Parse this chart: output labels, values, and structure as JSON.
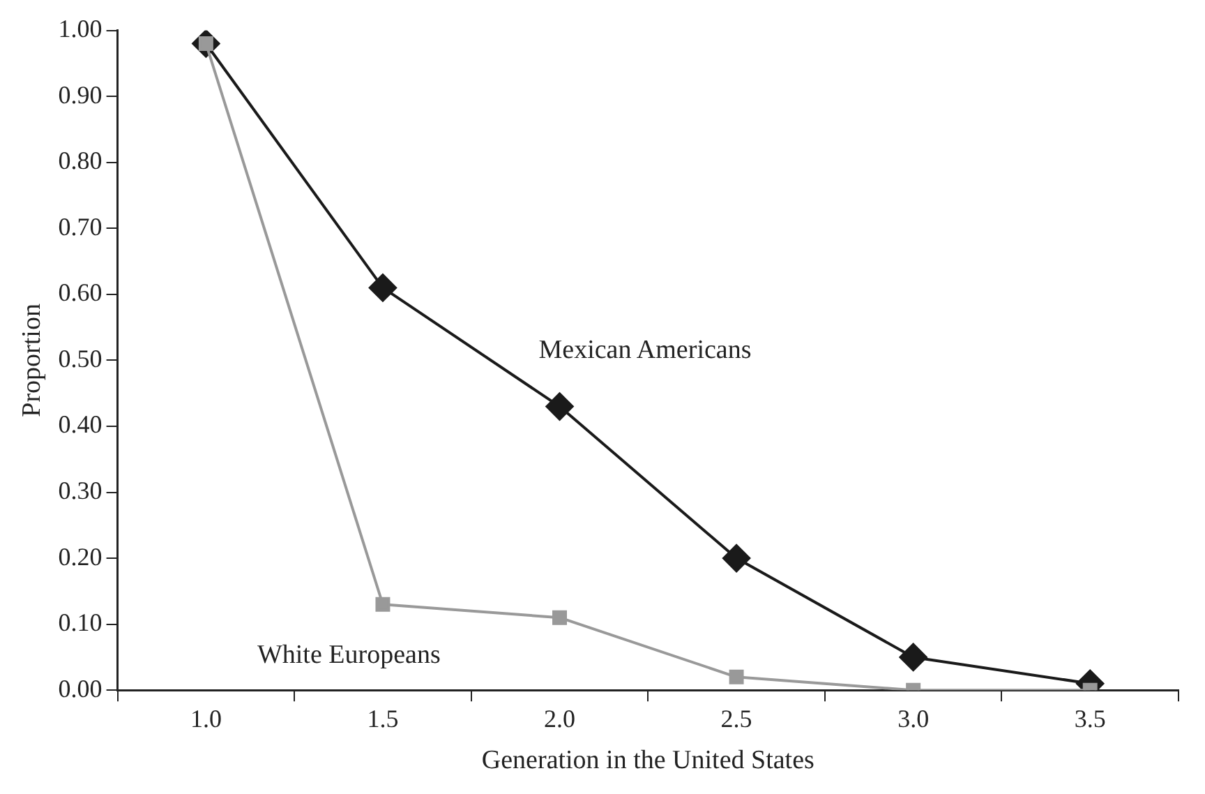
{
  "chart_data": {
    "type": "line",
    "xlabel": "Generation in the United States",
    "ylabel": "Proportion",
    "categories": [
      "1.0",
      "1.5",
      "2.0",
      "2.5",
      "3.0",
      "3.5"
    ],
    "series": [
      {
        "name": "Mexican Americans",
        "color": "#1a1a1a",
        "marker": "diamond",
        "values": [
          0.98,
          0.61,
          0.43,
          0.2,
          0.05,
          0.01
        ]
      },
      {
        "name": "White Europeans",
        "color": "#999999",
        "marker": "square",
        "values": [
          0.98,
          0.13,
          0.11,
          0.02,
          0.0,
          0.0
        ]
      }
    ],
    "ylim": [
      0,
      1
    ],
    "yticks": [
      {
        "value": 0,
        "label": "0.00"
      },
      {
        "value": 0.1,
        "label": "0.10"
      },
      {
        "value": 0.2,
        "label": "0.20"
      },
      {
        "value": 0.3,
        "label": "0.30"
      },
      {
        "value": 0.4,
        "label": "0.40"
      },
      {
        "value": 0.5,
        "label": "0.50"
      },
      {
        "value": 0.6,
        "label": "0.60"
      },
      {
        "value": 0.7,
        "label": "0.70"
      },
      {
        "value": 0.8,
        "label": "0.80"
      },
      {
        "value": 0.9,
        "label": "0.90"
      },
      {
        "value": 1,
        "label": "1.00"
      }
    ],
    "grid": false,
    "legend": false,
    "line_style": "solid"
  }
}
